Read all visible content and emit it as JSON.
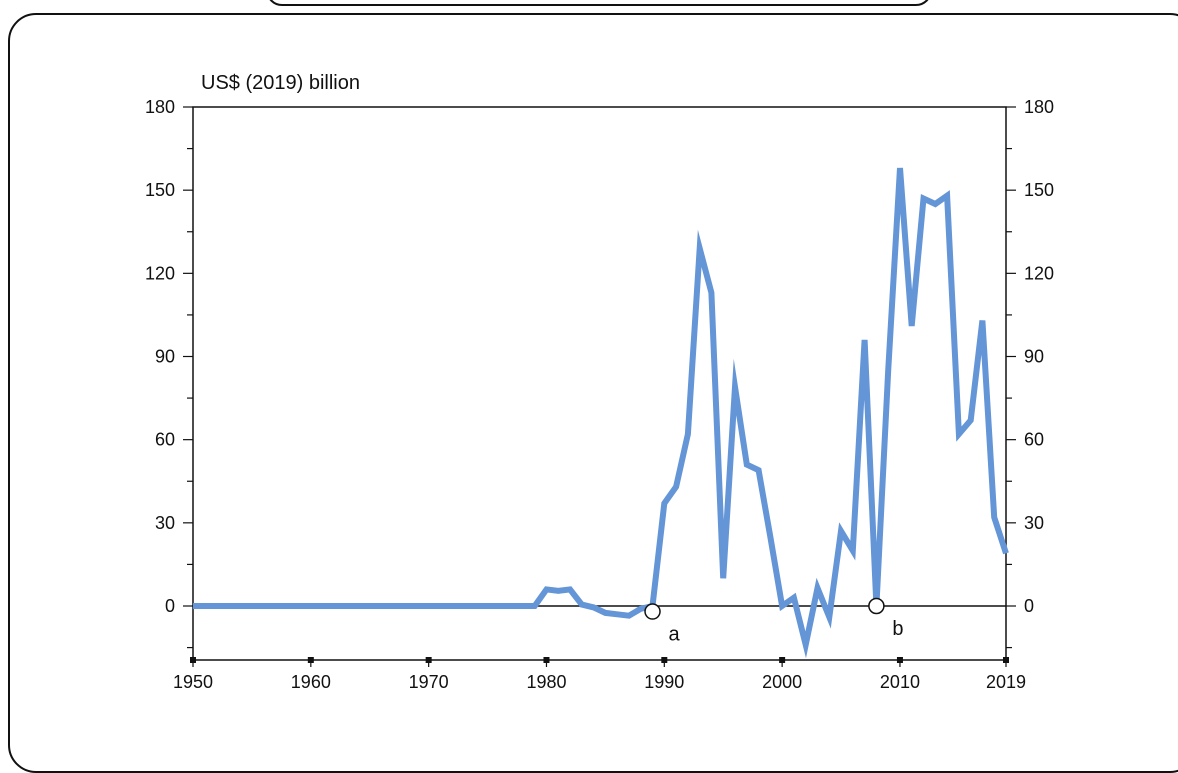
{
  "chart_data": {
    "type": "line",
    "unit_label": "US$ (2019) billion",
    "xlim": [
      1950,
      2019
    ],
    "ylim": [
      -15,
      180
    ],
    "x_ticks": [
      1950,
      1960,
      1970,
      1980,
      1990,
      2000,
      2010,
      2019
    ],
    "y_ticks": [
      0,
      30,
      60,
      90,
      120,
      150,
      180
    ],
    "grid": false,
    "series": [
      {
        "color": "#6495d6",
        "points": [
          [
            1950,
            0
          ],
          [
            1951,
            0
          ],
          [
            1952,
            0
          ],
          [
            1953,
            0
          ],
          [
            1954,
            0
          ],
          [
            1955,
            0
          ],
          [
            1956,
            0
          ],
          [
            1957,
            0
          ],
          [
            1958,
            0
          ],
          [
            1959,
            0
          ],
          [
            1960,
            0
          ],
          [
            1961,
            0
          ],
          [
            1962,
            0
          ],
          [
            1963,
            0
          ],
          [
            1964,
            0
          ],
          [
            1965,
            0
          ],
          [
            1966,
            0
          ],
          [
            1967,
            0
          ],
          [
            1968,
            0
          ],
          [
            1969,
            0
          ],
          [
            1970,
            0
          ],
          [
            1971,
            0
          ],
          [
            1972,
            0
          ],
          [
            1973,
            0
          ],
          [
            1974,
            0
          ],
          [
            1975,
            0
          ],
          [
            1976,
            0
          ],
          [
            1977,
            0
          ],
          [
            1978,
            0
          ],
          [
            1979,
            0
          ],
          [
            1980,
            6
          ],
          [
            1981,
            5.5
          ],
          [
            1982,
            6
          ],
          [
            1983,
            0.5
          ],
          [
            1984,
            -0.5
          ],
          [
            1985,
            -2.5
          ],
          [
            1986,
            -3
          ],
          [
            1987,
            -3.5
          ],
          [
            1988,
            -1
          ],
          [
            1989,
            0
          ],
          [
            1990,
            37
          ],
          [
            1991,
            43
          ],
          [
            1992,
            62
          ],
          [
            1993,
            129
          ],
          [
            1994,
            113
          ],
          [
            1995,
            10
          ],
          [
            1996,
            79
          ],
          [
            1997,
            51
          ],
          [
            1998,
            49
          ],
          [
            1999,
            25
          ],
          [
            2000,
            0
          ],
          [
            2001,
            3
          ],
          [
            2002,
            -14
          ],
          [
            2003,
            6.5
          ],
          [
            2004,
            -4
          ],
          [
            2005,
            27
          ],
          [
            2006,
            20
          ],
          [
            2007,
            96
          ],
          [
            2008,
            0
          ],
          [
            2009,
            85
          ],
          [
            2010,
            158
          ],
          [
            2011,
            101
          ],
          [
            2012,
            147
          ],
          [
            2013,
            145
          ],
          [
            2014,
            148
          ],
          [
            2015,
            62
          ],
          [
            2016,
            67
          ],
          [
            2017,
            103
          ],
          [
            2018,
            32
          ],
          [
            2019,
            19
          ]
        ]
      }
    ],
    "annotations": [
      {
        "label": "a",
        "x": 1989,
        "y": -2
      },
      {
        "label": "b",
        "x": 2008,
        "y": 0
      }
    ]
  }
}
